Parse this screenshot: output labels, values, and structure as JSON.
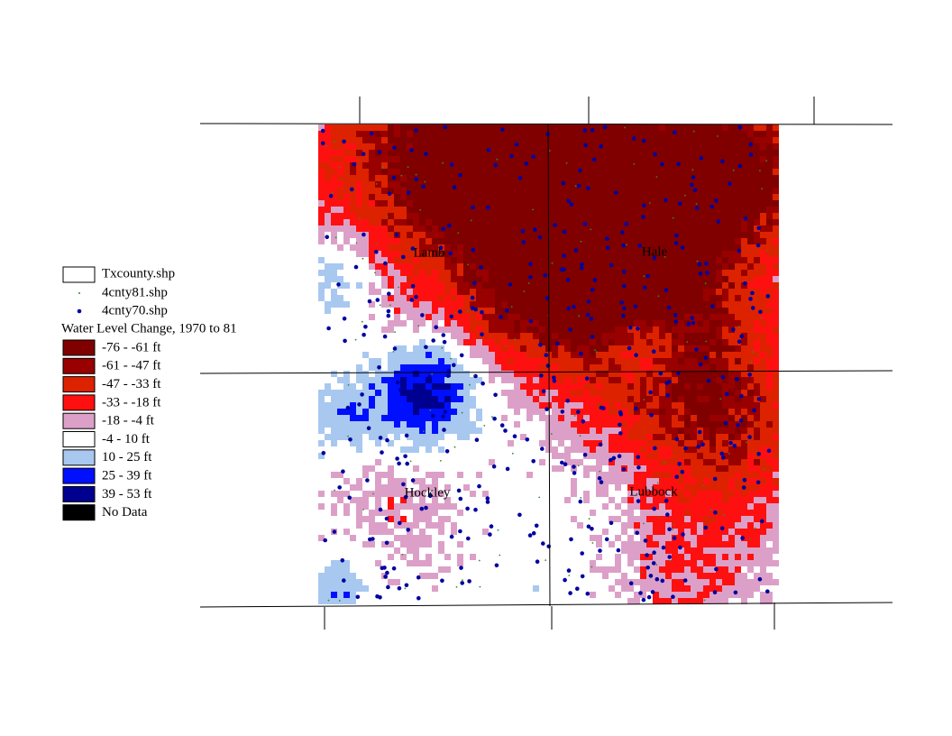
{
  "legend": {
    "layers": [
      {
        "name": "Txcounty.shp",
        "color": "#ffffff"
      },
      {
        "name": "4cnty81.shp",
        "color": "#2e8b2e"
      },
      {
        "name": "4cnty70.shp",
        "color": "#0000a0"
      }
    ],
    "title": "Water Level Change, 1970 to 81",
    "classes": [
      {
        "label": "-76 - -61 ft",
        "color": "#800000"
      },
      {
        "label": "-61 - -47 ft",
        "color": "#990000"
      },
      {
        "label": "-47 - -33 ft",
        "color": "#dd2200"
      },
      {
        "label": "-33 - -18 ft",
        "color": "#ff1010"
      },
      {
        "label": "-18 - -4 ft",
        "color": "#dca0c8"
      },
      {
        "label": "-4 - 10 ft",
        "color": "#ffffff"
      },
      {
        "label": "10 - 25 ft",
        "color": "#a8c8f0"
      },
      {
        "label": "25 - 39 ft",
        "color": "#0010ff"
      },
      {
        "label": "39 - 53 ft",
        "color": "#000090"
      },
      {
        "label": "No Data",
        "color": "#000000"
      }
    ]
  },
  "counties": [
    {
      "label": "Lamb"
    },
    {
      "label": "Hale"
    },
    {
      "label": "Hockley"
    },
    {
      "label": "Lubbock"
    }
  ]
}
